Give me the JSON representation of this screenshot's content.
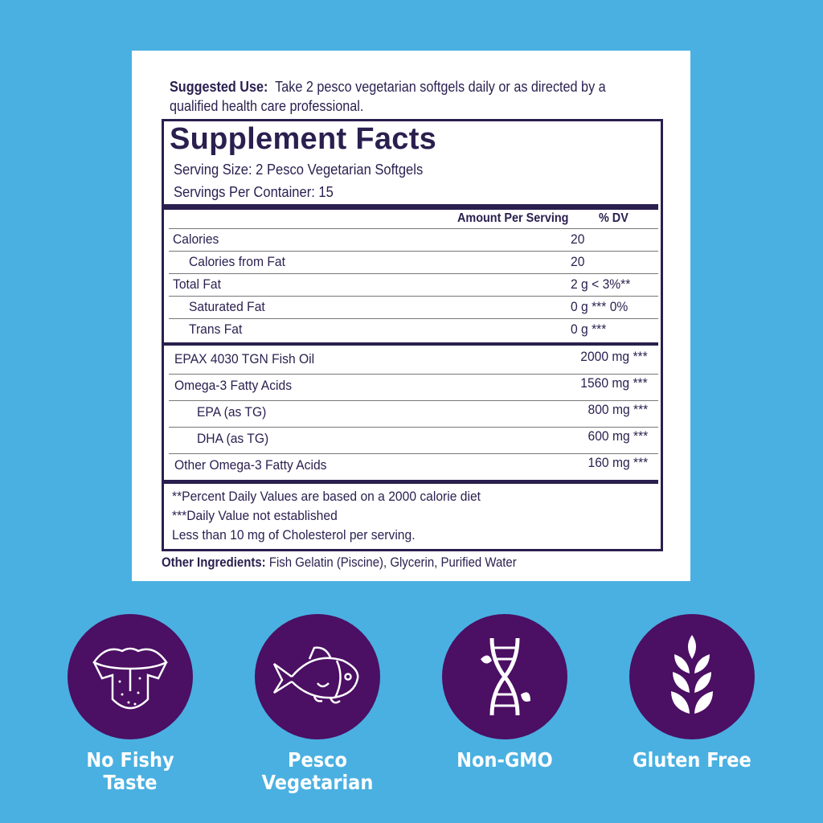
{
  "suggested_use": {
    "label": "Suggested Use:",
    "text": "Take 2 pesco vegetarian softgels daily or as directed by a qualified health care professional."
  },
  "facts": {
    "title": "Supplement Facts",
    "serving_size": "Serving Size:  2 Pesco Vegetarian Softgels",
    "servings_per_container": "Servings Per Container: 15",
    "col_amount": "Amount Per Serving",
    "col_dv": "% DV",
    "rows": [
      {
        "name": "Calories",
        "value": "20"
      },
      {
        "name": "Calories from Fat",
        "value": "20"
      },
      {
        "name": "Total Fat",
        "value": "2 g < 3%**"
      },
      {
        "name": "Saturated Fat",
        "value": "0 g *** 0%"
      },
      {
        "name": "Trans Fat",
        "value": "0 g ***"
      }
    ],
    "rows2": [
      {
        "name": "EPAX 4030 TGN Fish Oil",
        "value": "2000 mg ***"
      },
      {
        "name": "Omega-3 Fatty Acids",
        "value": "1560 mg ***"
      },
      {
        "name": "EPA (as TG)",
        "value": "800 mg ***"
      },
      {
        "name": "DHA (as TG)",
        "value": "600 mg ***"
      },
      {
        "name": "Other Omega-3 Fatty Acids",
        "value": "160 mg ***"
      }
    ],
    "footnotes": [
      "**Percent Daily Values are based on a 2000 calorie diet",
      "***Daily Value not established",
      "Less than 10 mg of Cholesterol per serving."
    ]
  },
  "other_ingredients": {
    "label": "Other Ingredients:",
    "text": "Fish Gelatin (Piscine), Glycerin, Purified Water"
  },
  "badges": [
    {
      "icon": "tongue-icon",
      "label_1": "No Fishy",
      "label_2": "Taste"
    },
    {
      "icon": "fish-icon",
      "label_1": "Pesco",
      "label_2": "Vegetarian"
    },
    {
      "icon": "dna-icon",
      "label_1": "Non-GMO",
      "label_2": ""
    },
    {
      "icon": "wheat-icon",
      "label_1": "Gluten Free",
      "label_2": ""
    }
  ],
  "colors": {
    "background": "#4ab0e1",
    "badge": "#4b0f63",
    "label_text": "#2a1f4f"
  }
}
